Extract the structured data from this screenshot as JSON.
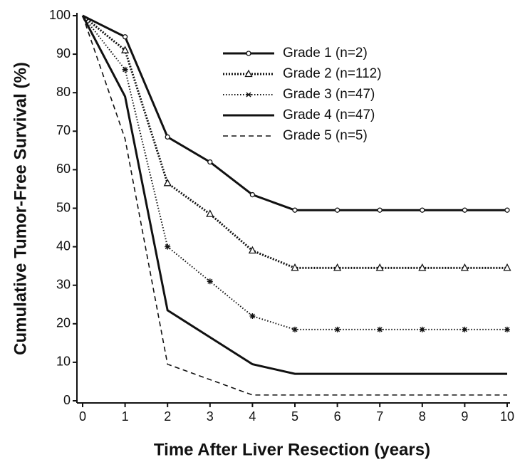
{
  "chart_data": {
    "type": "line",
    "xlabel": "Time After Liver Resection (years)",
    "ylabel": "Cumulative Tumor-Free Survival (%)",
    "x": [
      0,
      1,
      2,
      3,
      4,
      5,
      6,
      7,
      8,
      9,
      10
    ],
    "xlim": [
      0,
      10
    ],
    "xticks": [
      0,
      1,
      2,
      3,
      4,
      5,
      6,
      7,
      8,
      9,
      10
    ],
    "ylim": [
      0,
      100
    ],
    "yticks": [
      0,
      10,
      20,
      30,
      40,
      50,
      60,
      70,
      80,
      90,
      100
    ],
    "grid": false,
    "legend": "top-right",
    "series": [
      {
        "name": "Grade 1 (n=2)",
        "color": "#111111",
        "dash": "solid-thick",
        "marker": "circle",
        "values": [
          100,
          94.5,
          68.5,
          62,
          53.5,
          49.5,
          49.5,
          49.5,
          49.5,
          49.5,
          49.5
        ]
      },
      {
        "name": "Grade 2 (n=112)",
        "color": "#111111",
        "dash": "dotted-thick",
        "marker": "triangle",
        "values": [
          100,
          91,
          56.5,
          48.5,
          39,
          34.5,
          34.5,
          34.5,
          34.5,
          34.5,
          34.5
        ]
      },
      {
        "name": "Grade 3 (n=47)",
        "color": "#111111",
        "dash": "dotted",
        "marker": "asterisk",
        "values": [
          100,
          86,
          40,
          31,
          22,
          18.5,
          18.5,
          18.5,
          18.5,
          18.5,
          18.5
        ]
      },
      {
        "name": "Grade 4 (n=47)",
        "color": "#111111",
        "dash": "solid",
        "marker": "none",
        "values": [
          100,
          79,
          23.5,
          16.5,
          9.5,
          7,
          7,
          7,
          7,
          7,
          7
        ]
      },
      {
        "name": "Grade 5 (n=5)",
        "color": "#111111",
        "dash": "dashed",
        "marker": "none",
        "values": [
          100,
          68,
          9.5,
          5.5,
          1.5,
          1.5,
          1.5,
          1.5,
          1.5,
          1.5,
          1.5
        ]
      }
    ]
  }
}
